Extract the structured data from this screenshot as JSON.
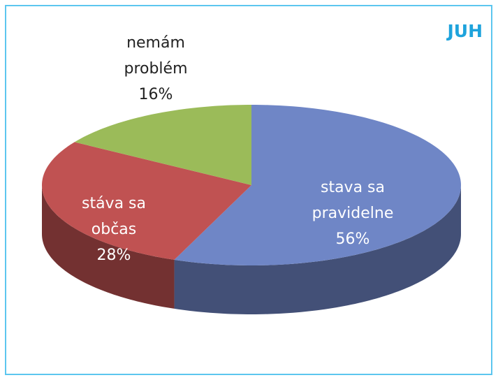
{
  "chart_data": {
    "type": "pie3d",
    "title": "JUH",
    "categories": [
      "stava sa pravidelne",
      "stáva sa občas",
      "nemám problém"
    ],
    "values": [
      56,
      28,
      16
    ],
    "value_labels": [
      "56%",
      "28%",
      "16%"
    ],
    "colors": [
      "#6f86c6",
      "#c05252",
      "#9bbb59"
    ]
  }
}
